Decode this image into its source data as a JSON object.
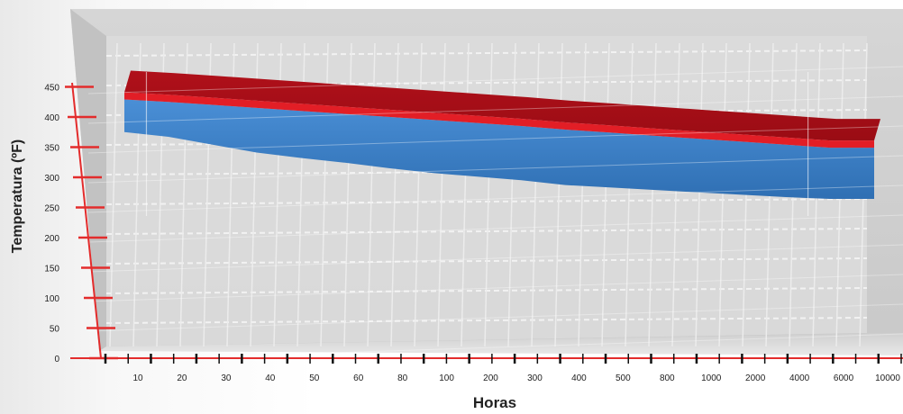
{
  "chart_data": {
    "type": "area",
    "title": "",
    "xlabel": "Horas",
    "ylabel": "Temperatura (ºF)",
    "x_ticks": [
      "10",
      "20",
      "30",
      "40",
      "50",
      "60",
      "80",
      "100",
      "200",
      "300",
      "400",
      "500",
      "800",
      "1000",
      "2000",
      "4000",
      "6000",
      "10000"
    ],
    "y_ticks": [
      0,
      50,
      100,
      150,
      200,
      250,
      300,
      350,
      400,
      450
    ],
    "ylim": [
      0,
      450
    ],
    "grid": true,
    "series": [
      {
        "color": "#c4121a",
        "values": [
          450,
          446,
          441,
          436,
          431,
          426,
          421,
          416,
          411,
          406,
          400,
          395,
          390,
          385,
          380,
          375,
          370,
          370
        ]
      },
      {
        "color": "#3a7dc4",
        "values": [
          396,
          388,
          375,
          362,
          353,
          345,
          336,
          328,
          322,
          316,
          308,
          304,
          300,
          296,
          292,
          288,
          285,
          285
        ]
      }
    ]
  }
}
